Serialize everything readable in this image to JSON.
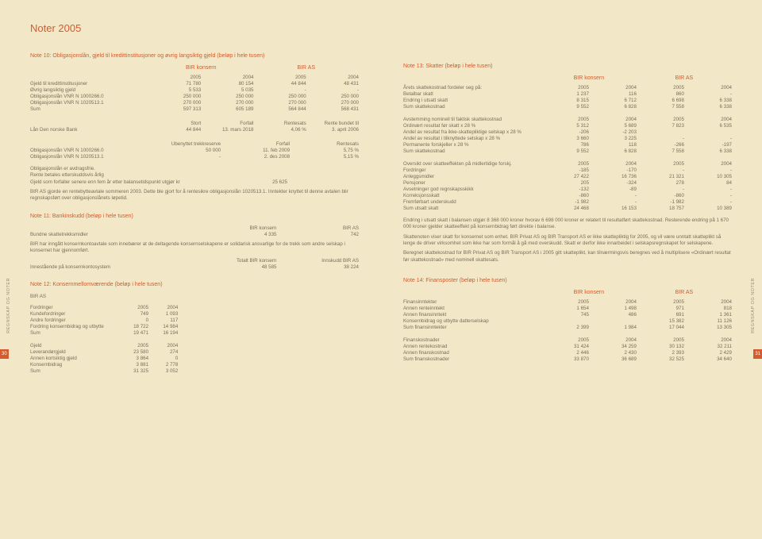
{
  "colors": {
    "accent": "#d55a2c",
    "text": "#7a6d5a",
    "bg": "#f2e8c8"
  },
  "docTitle": "Noter 2005",
  "sideLabel": "REGNSKAP OG NOTER",
  "pageLeft": "30",
  "pageRight": "31",
  "leftPage": {
    "note10": {
      "title": "Note 10: Obligasjonslån, gjeld til kredittinstitusjoner og øvrig langsiktig gjeld (beløp i hele tusen)",
      "group1": "BIR konsern",
      "group2": "BIR AS",
      "years": [
        "2005",
        "2004",
        "2005",
        "2004"
      ],
      "rows": [
        [
          "Gjeld til kredittinstitusjoner",
          "71 780",
          "80 154",
          "44 844",
          "48 431"
        ],
        [
          "Øvrig langsiktig gjeld",
          "5 533",
          "5 035",
          "-",
          "-"
        ],
        [
          "Obligasjonslån VNR N 1000266.0",
          "250 000",
          "250 000",
          "250 000",
          "250 000"
        ],
        [
          "Obligasjonslån VNR N 1020513.1",
          "270 000",
          "270 000",
          "270 000",
          "270 000"
        ],
        [
          "Sum",
          "597 313",
          "605 189",
          "564 844",
          "568 431"
        ]
      ],
      "loanHeaders": [
        "",
        "Stort",
        "Forfall",
        "Rentesats",
        "Rente bundet til"
      ],
      "loanRow": [
        "Lån Den norske Bank",
        "44 844",
        "13. mars 2018",
        "4,06 %",
        "3. april 2006"
      ],
      "reserveHeaders": [
        "",
        "Ubenyttet trekkreserve",
        "Forfall",
        "Rentesats"
      ],
      "reserveRows": [
        [
          "Obligasjonslån VNR N 1000266.0",
          "50 000",
          "11. feb 2009",
          "5,75 %"
        ],
        [
          "Obligasjonslån VNR N 1020513.1",
          "-",
          "2. des 2008",
          "5,15 %"
        ]
      ],
      "para1a": "Obligasjonslån er avdragsfrie.",
      "para1b": "Rente betales etterskuddsvis årlig",
      "para1c": "Gjeld som forfaller senere enn fem år etter balansetidspunkt utgjør kr",
      "para1val": "25 625",
      "para2": "BIR AS gjorde en rentebytteavtale sommeren 2003. Dette ble gjort for å rentesikre obligasjonslån 1020513.1. Inntekter knyttet til denne avtalen blir regnskapsført over obligasjonslånets løpetid."
    },
    "note11": {
      "title": "Note 11: Bankinskudd (beløp i hele tusen)",
      "h1": "BIR konsern",
      "h2": "BIR AS",
      "row": [
        "Bundne skattetrekksmidler",
        "4 335",
        "742"
      ],
      "para": "BIR har inngått konsernkontoavtale som innebærer at de deltagende konsernselskapene er solidarisk ansvarlige for de trekk som andre selskap i konsernet har gjennomført.",
      "h3": "Totalt BIR konsern",
      "h4": "Innskudd BIR AS",
      "row2": [
        "Innestående på konsernkontosystem",
        "48 585",
        "38 224"
      ]
    },
    "note12": {
      "title": "Note 12: Konsernmellomværende (beløp i hele tusen)",
      "sub": "BIR AS",
      "t1h": [
        "Fordringer",
        "2005",
        "2004"
      ],
      "t1": [
        [
          "Kundefordringer",
          "749",
          "1 093"
        ],
        [
          "Andre fordringer",
          "0",
          "117"
        ],
        [
          "Fordring konsernbidrag og utbytte",
          "18 722",
          "14 984"
        ],
        [
          "Sum",
          "19 471",
          "16 194"
        ]
      ],
      "t2h": [
        "Gjeld",
        "2005",
        "2004"
      ],
      "t2": [
        [
          "Leverandørgjeld",
          "23 580",
          "274"
        ],
        [
          "Annen kortsiktig gjeld",
          "3 864",
          "0"
        ],
        [
          "Konsernbidrag",
          "3 881",
          "2 778"
        ],
        [
          "Sum",
          "31 325",
          "3 052"
        ]
      ]
    }
  },
  "rightPage": {
    "note13": {
      "title": "Note 13: Skatter (beløp i hele tusen)",
      "group1": "BIR konsern",
      "group2": "BIR AS",
      "t1h": [
        "Årets skattekostnad fordeler seg på:",
        "2005",
        "2004",
        "2005",
        "2004"
      ],
      "t1": [
        [
          "Betalbar skatt",
          "1 237",
          "116",
          "860",
          "-"
        ],
        [
          "Endring i utsatt skatt",
          "8 315",
          "6 712",
          "6 698",
          "6 338"
        ],
        [
          "Sum skattekostnad",
          "9 552",
          "6 828",
          "7 558",
          "6 338"
        ]
      ],
      "t2h": [
        "Avstemming nominell til faktisk skattekostnad",
        "2005",
        "2004",
        "2005",
        "2004"
      ],
      "t2": [
        [
          "Ordinært resultat før skatt x 28 %",
          "5 312",
          "5 689",
          "7 823",
          "6 535"
        ],
        [
          "Andel av resultat fra ikke-skattepliktige selskap x 28 %",
          "-206",
          "-2 203",
          "",
          ""
        ],
        [
          "Andel av resultat i tilknyttede selskap x 28 %",
          "3 660",
          "3 225",
          "-",
          "-"
        ],
        [
          "Permanente forskjeller x 28 %",
          "786",
          "118",
          "-266",
          "-197"
        ],
        [
          "Sum skattekostnad",
          "9 552",
          "6 828",
          "7 558",
          "6 338"
        ]
      ],
      "t3h": [
        "Oversikt over skatteeffekten på midlertidige forskj.",
        "2005",
        "2004",
        "2005",
        "2004"
      ],
      "t3": [
        [
          "Fordringer",
          "-185",
          "-170",
          "-",
          "-"
        ],
        [
          "Anleggsmidler",
          "27 422",
          "16 736",
          "21 321",
          "10 305"
        ],
        [
          "Pensjoner",
          "205",
          "-324",
          "278",
          "84"
        ],
        [
          "Avsetninger god regnskapsskikk",
          "-132",
          "-89",
          "-",
          "-"
        ],
        [
          "Korreksjonsskatt",
          "-860",
          "-",
          "-860",
          "-"
        ],
        [
          "Fremførbart underskudd",
          "-1 982",
          "-",
          "-1 982",
          "-"
        ],
        [
          "Sum utsatt skatt",
          "24 468",
          "16 153",
          "18 757",
          "10 389"
        ]
      ],
      "para1": "Endring i utsatt skatt i balansen utgjør 8 368 000 kroner hvorav 6 698 000 kroner er relatert til resultatført skattekostnad. Resterende endring på 1 670 000 kroner gjelder skatteeffekt på konsernbidrag ført direkte i balanse.",
      "para2": "Skattenoten viser skatt for konsernet som enhet. BIR Privat AS og BIR Transport AS er ikke skattepliktig for 2005, og vil være unntatt skatteplikt så lenge de driver virksomhet som ikke har som formål å gå med overskudd. Skatt er derfor ikke innarbeidet i selskapsregnskapet for selskapene.",
      "para3": "Beregnet skattekostnad for BIR Privat AS og BIR Transport AS i 2005 gitt skatteplikt, kan tilnærmingsvis beregnes ved å multiplisere «Ordinært resultat før skattekostnad» med nominell skattesats."
    },
    "note14": {
      "title": "Note 14: Finansposter (beløp i hele tusen)",
      "group1": "BIR konsern",
      "group2": "BIR AS",
      "t1h": [
        "Finansinntekter",
        "2005",
        "2004",
        "2005",
        "2004"
      ],
      "t1": [
        [
          "Annen renteinntekt",
          "1 654",
          "1 498",
          "971",
          "818"
        ],
        [
          "Annen finansinntekt",
          "745",
          "486",
          "691",
          "1 361"
        ],
        [
          "Konsernbidrag og utbytte datterselskap",
          "",
          "",
          "15 382",
          "11 126"
        ],
        [
          "Sum finansinntekter",
          "2 399",
          "1 984",
          "17 044",
          "13 305"
        ]
      ],
      "t2h": [
        "Finanskostnader",
        "2005",
        "2004",
        "2005",
        "2004"
      ],
      "t2": [
        [
          "Annen rentekostnad",
          "31 424",
          "34 259",
          "30 132",
          "32 211"
        ],
        [
          "Annen finanskostnad",
          "2 446",
          "2 430",
          "2 393",
          "2 429"
        ],
        [
          "Sum finanskostnader",
          "33 870",
          "36 689",
          "32 525",
          "34 640"
        ]
      ]
    }
  }
}
